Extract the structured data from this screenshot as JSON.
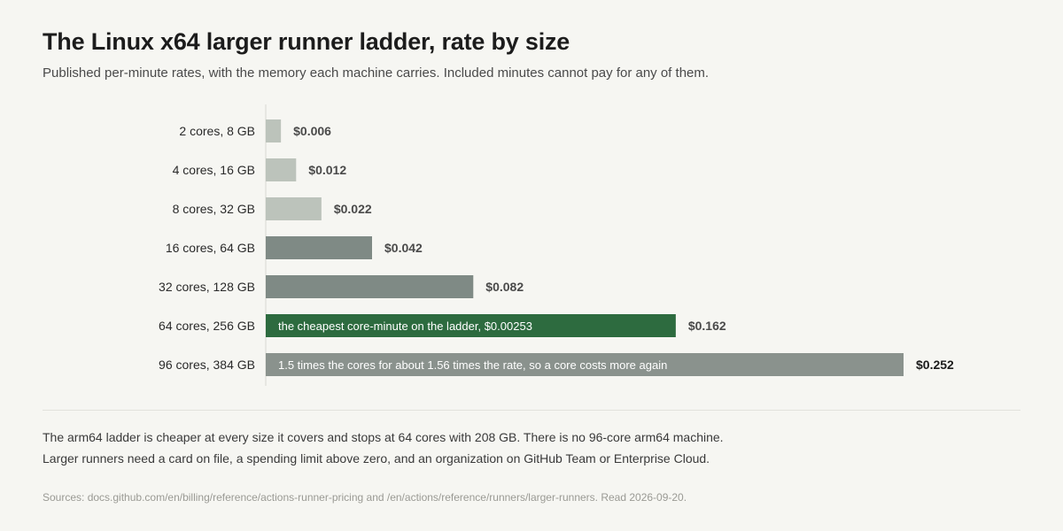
{
  "header": {
    "title": "The Linux x64 larger runner ladder, rate by size",
    "subtitle": "Published per-minute rates, with the memory each machine carries. Included minutes cannot pay for any of them."
  },
  "chart_data": {
    "type": "bar",
    "orientation": "horizontal",
    "categories": [
      "2 cores, 8 GB",
      "4 cores, 16 GB",
      "8 cores, 32 GB",
      "16 cores, 64 GB",
      "32 cores, 128 GB",
      "64 cores, 256 GB",
      "96 cores, 384 GB"
    ],
    "values": [
      0.006,
      0.012,
      0.022,
      0.042,
      0.082,
      0.162,
      0.252
    ],
    "value_labels": [
      "$0.006",
      "$0.012",
      "$0.022",
      "$0.042",
      "$0.082",
      "$0.162",
      "$0.252"
    ],
    "bar_annotations": [
      "",
      "",
      "",
      "",
      "",
      "the cheapest core-minute on the ladder, $0.00253",
      "1.5 times the cores for about 1.56 times the rate, so a core costs more again"
    ],
    "bar_colors": [
      "#bcc3bb",
      "#bcc3bb",
      "#bcc3bb",
      "#7f8a85",
      "#7f8a85",
      "#2d6b3f",
      "#8a928d"
    ],
    "xlim": [
      0,
      0.252
    ],
    "grid": false,
    "legend": "none"
  },
  "notes": {
    "line1": "The arm64 ladder is cheaper at every size it covers and stops at 64 cores with 208 GB. There is no 96-core arm64 machine.",
    "line2": "Larger runners need a card on file, a spending limit above zero, and an organization on GitHub Team or Enterprise Cloud."
  },
  "source": "Sources: docs.github.com/en/billing/reference/actions-runner-pricing and /en/actions/reference/runners/larger-runners. Read 2026-09-20."
}
